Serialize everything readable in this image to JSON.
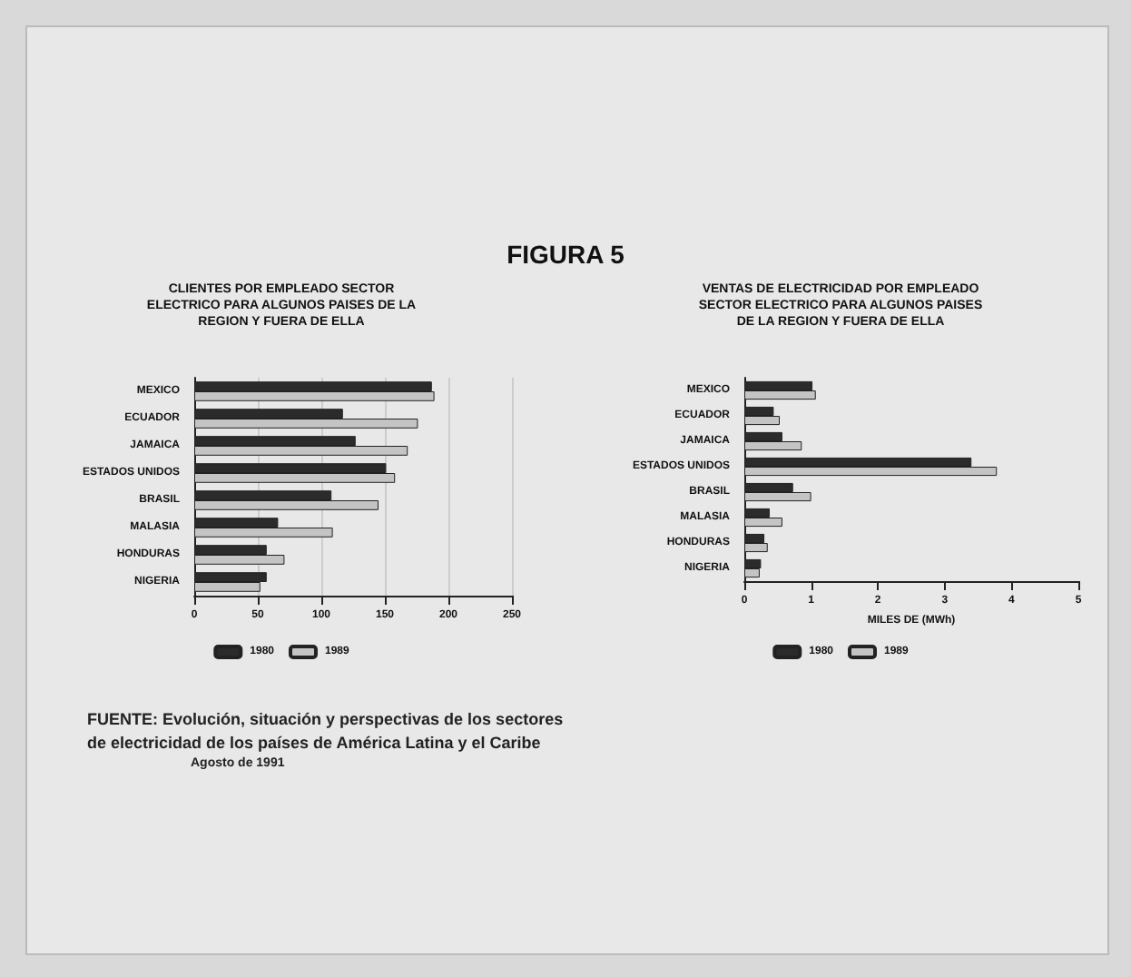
{
  "chart_data": [
    {
      "type": "bar",
      "orientation": "horizontal",
      "title": "FIGURA 5",
      "subtitle": "CLIENTES POR EMPLEADO SECTOR\nELECTRICO PARA ALGUNOS PAISES DE LA\nREGION Y FUERA DE ELLA",
      "categories": [
        "MEXICO",
        "ECUADOR",
        "JAMAICA",
        "ESTADOS UNIDOS",
        "BRASIL",
        "MALASIA",
        "HONDURAS",
        "NIGERIA"
      ],
      "series": [
        {
          "name": "1980",
          "color": "#2b2b2b",
          "values": [
            187,
            117,
            127,
            151,
            108,
            66,
            57,
            57
          ]
        },
        {
          "name": "1989",
          "color": "#c4c4c4",
          "values": [
            189,
            176,
            168,
            158,
            145,
            109,
            71,
            52
          ]
        }
      ],
      "xlim": [
        0,
        250
      ],
      "xticks": [
        0,
        50,
        100,
        150,
        200,
        250
      ],
      "grid": "x",
      "legend": "bottom",
      "annotations": [
        "FUENTE: Evolución, situación y perspectivas de los sectores\nde electricidad de los países de América Latina y el Caribe",
        "Agosto de 1991"
      ]
    },
    {
      "type": "bar",
      "orientation": "horizontal",
      "title": "VENTAS DE ELECTRICIDAD POR EMPLEADO\nSECTOR ELECTRICO PARA ALGUNOS PAISES\nDE LA REGION Y FUERA DE ELLA",
      "xlabel": "MILES DE (MWh)",
      "categories": [
        "MEXICO",
        "ECUADOR",
        "JAMAICA",
        "ESTADOS UNIDOS",
        "BRASIL",
        "MALASIA",
        "HONDURAS",
        "NIGERIA"
      ],
      "series": [
        {
          "name": "1980",
          "color": "#2b2b2b",
          "values": [
            1.02,
            0.44,
            0.57,
            3.4,
            0.73,
            0.38,
            0.3,
            0.25
          ]
        },
        {
          "name": "1989",
          "color": "#c4c4c4",
          "values": [
            1.07,
            0.53,
            0.86,
            3.78,
            1.0,
            0.57,
            0.35,
            0.23
          ]
        }
      ],
      "xlim": [
        0,
        5
      ],
      "xticks": [
        0,
        1,
        2,
        3,
        4,
        5
      ],
      "legend": "bottom"
    }
  ]
}
